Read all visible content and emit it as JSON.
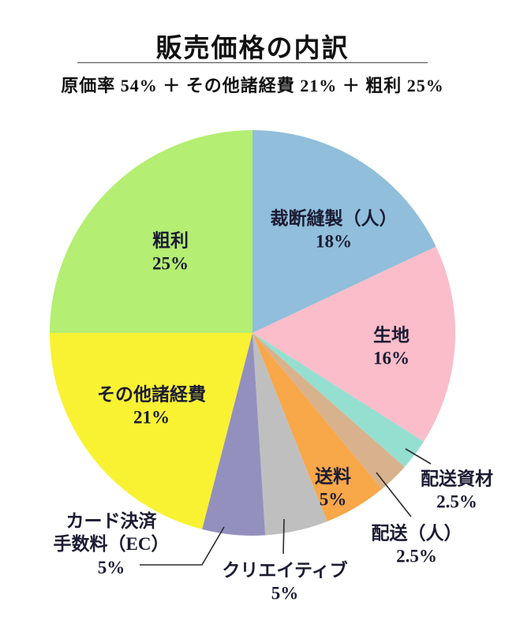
{
  "chart_data": {
    "type": "pie",
    "title": "販売価格の内訳",
    "subtitle": "原価率 54% ＋ その他諸経費 21% ＋ 粗利 25%",
    "start_angle_deg": 0,
    "direction": "clockwise",
    "total": 100,
    "legend": "none (labels on or beside slices)",
    "slices": [
      {
        "label": "裁断縫製（人）",
        "value": 18,
        "pct_label": "18%",
        "color": "#90BEDB",
        "label_placement": "inside"
      },
      {
        "label": "生地",
        "value": 16,
        "pct_label": "16%",
        "color": "#FABDC9",
        "label_placement": "inside"
      },
      {
        "label": "配送資材",
        "value": 2.5,
        "pct_label": "2.5%",
        "color": "#95DFD1",
        "label_placement": "outside-leader"
      },
      {
        "label": "配送（人）",
        "value": 2.5,
        "pct_label": "2.5%",
        "color": "#D8B28D",
        "label_placement": "outside-leader"
      },
      {
        "label": "送料",
        "value": 5,
        "pct_label": "5%",
        "color": "#F8A749",
        "label_placement": "inside"
      },
      {
        "label": "クリエイティブ",
        "value": 5,
        "pct_label": "5%",
        "color": "#BFBFBF",
        "label_placement": "outside-leader"
      },
      {
        "label": "カード決済手数料（EC）",
        "label_lines": [
          "カード決済",
          "手数料（EC）"
        ],
        "value": 5,
        "pct_label": "5%",
        "color": "#9490BE",
        "label_placement": "outside-leader"
      },
      {
        "label": "その他諸経費",
        "value": 21,
        "pct_label": "21%",
        "color": "#F8F233",
        "label_placement": "inside"
      },
      {
        "label": "粗利",
        "value": 25,
        "pct_label": "25%",
        "color": "#B4EE72",
        "label_placement": "inside"
      }
    ]
  },
  "colors": {
    "background": "#FFFFFF",
    "text": "#1B1B33",
    "title_text": "#111111",
    "divider": "#4A4A4A",
    "leader_line": "#2B2B2B"
  }
}
